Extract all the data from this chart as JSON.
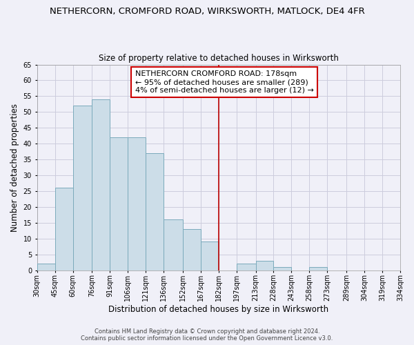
{
  "title": "NETHERCORN, CROMFORD ROAD, WIRKSWORTH, MATLOCK, DE4 4FR",
  "subtitle": "Size of property relative to detached houses in Wirksworth",
  "xlabel": "Distribution of detached houses by size in Wirksworth",
  "ylabel": "Number of detached properties",
  "bar_edges": [
    30,
    45,
    60,
    76,
    91,
    106,
    121,
    136,
    152,
    167,
    182,
    197,
    213,
    228,
    243,
    258,
    273,
    289,
    304,
    319,
    334
  ],
  "bar_heights": [
    2,
    26,
    52,
    54,
    42,
    42,
    37,
    16,
    13,
    9,
    0,
    2,
    3,
    1,
    0,
    1,
    0,
    0,
    0,
    0
  ],
  "tick_labels": [
    "30sqm",
    "45sqm",
    "60sqm",
    "76sqm",
    "91sqm",
    "106sqm",
    "121sqm",
    "136sqm",
    "152sqm",
    "167sqm",
    "182sqm",
    "197sqm",
    "213sqm",
    "228sqm",
    "243sqm",
    "258sqm",
    "273sqm",
    "289sqm",
    "304sqm",
    "319sqm",
    "334sqm"
  ],
  "bar_color": "#ccdde8",
  "bar_edge_color": "#7aaabb",
  "reference_line_x": 182,
  "reference_line_color": "#bb0000",
  "ylim": [
    0,
    65
  ],
  "yticks": [
    0,
    5,
    10,
    15,
    20,
    25,
    30,
    35,
    40,
    45,
    50,
    55,
    60,
    65
  ],
  "grid_color": "#ccccdd",
  "background_color": "#f0f0f8",
  "annotation_title": "NETHERCORN CROMFORD ROAD: 178sqm",
  "annotation_line1": "← 95% of detached houses are smaller (289)",
  "annotation_line2": "4% of semi-detached houses are larger (12) →",
  "annotation_box_facecolor": "#ffffff",
  "annotation_box_edgecolor": "#cc0000",
  "footer_line1": "Contains HM Land Registry data © Crown copyright and database right 2024.",
  "footer_line2": "Contains public sector information licensed under the Open Government Licence v3.0.",
  "title_fontsize": 9.5,
  "subtitle_fontsize": 8.5,
  "axis_label_fontsize": 8.5,
  "tick_fontsize": 7,
  "annotation_fontsize": 8,
  "footer_fontsize": 6
}
